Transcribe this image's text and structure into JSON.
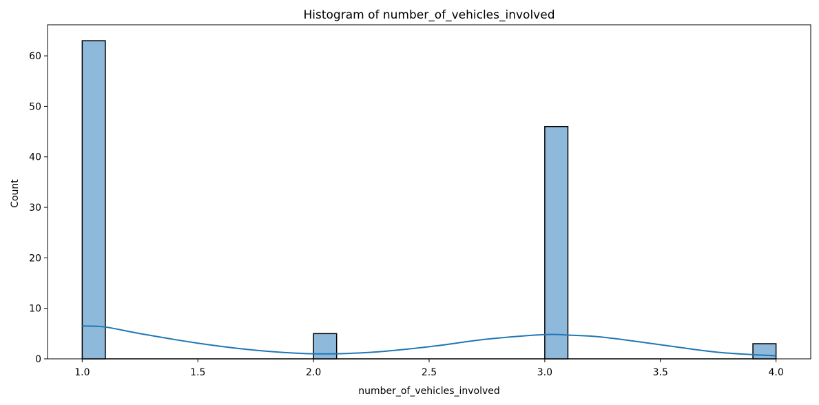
{
  "chart_data": {
    "type": "bar",
    "title": "Histogram of number_of_vehicles_involved",
    "xlabel": "number_of_vehicles_involved",
    "ylabel": "Count",
    "xlim": [
      0.85,
      4.15
    ],
    "ylim": [
      0,
      66.15
    ],
    "xticks": [
      "1.0",
      "1.5",
      "2.0",
      "2.5",
      "3.0",
      "3.5",
      "4.0"
    ],
    "yticks": [
      "0",
      "10",
      "20",
      "30",
      "40",
      "50",
      "60"
    ],
    "bins": 30,
    "bin_range": [
      1.0,
      4.0
    ],
    "bars": [
      {
        "x0": 1.0,
        "x1": 1.1,
        "count": 63
      },
      {
        "x0": 2.0,
        "x1": 2.1,
        "count": 5
      },
      {
        "x0": 3.0,
        "x1": 3.1,
        "count": 46
      },
      {
        "x0": 3.9,
        "x1": 4.0,
        "count": 3
      }
    ],
    "kde": {
      "x": [
        1.0,
        1.1,
        1.25,
        1.5,
        1.75,
        2.0,
        2.25,
        2.5,
        2.75,
        3.0,
        3.1,
        3.25,
        3.5,
        3.75,
        4.0
      ],
      "y": [
        6.5,
        6.3,
        5.0,
        3.1,
        1.7,
        1.0,
        1.3,
        2.4,
        3.9,
        4.8,
        4.7,
        4.3,
        2.8,
        1.3,
        0.6
      ]
    },
    "colors": {
      "bar_fill": "#8fb9db",
      "bar_edge": "#000000",
      "kde_line": "#1f77b4"
    },
    "grid": false,
    "legend": "none"
  }
}
